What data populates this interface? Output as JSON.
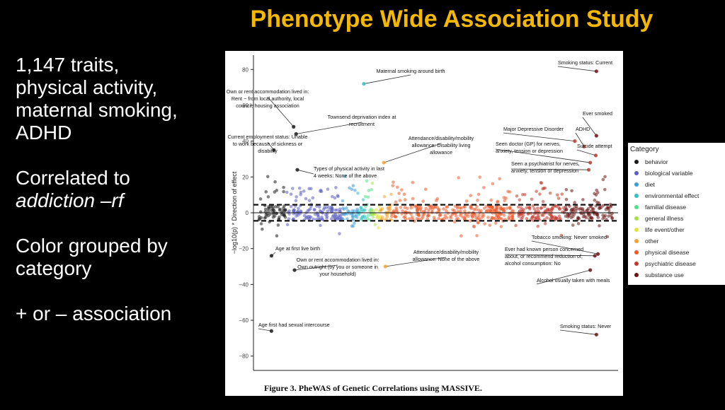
{
  "slide": {
    "title": "Phenotype Wide Association Study",
    "bullets": {
      "b1": [
        "1,147 traits,",
        "physical activity,",
        "maternal smoking,",
        "ADHD"
      ],
      "b2_line1": "Correlated to",
      "b2_line2": "addiction –rf",
      "b3": [
        "Color grouped by",
        "category"
      ],
      "b4": "+ or – association"
    },
    "caption": "Figure 3. PheWAS of Genetic Correlations using MASSIVE."
  },
  "chart_data": {
    "type": "scatter",
    "title": "",
    "xlabel": "",
    "ylabel": "−log10(p) * Direction of effect",
    "ylim": [
      -88,
      88
    ],
    "yticks": [
      -80,
      -60,
      -40,
      -20,
      0,
      20,
      40,
      60,
      80
    ],
    "threshold_lines": [
      4.5,
      -4.5
    ],
    "legend": {
      "title": "Category",
      "placement": "right",
      "categories": [
        {
          "name": "behavior",
          "color": "#1b1b1b"
        },
        {
          "name": "biological variable",
          "color": "#5b5fbf"
        },
        {
          "name": "diet",
          "color": "#3c9bd9"
        },
        {
          "name": "environmental effect",
          "color": "#2fc2c4"
        },
        {
          "name": "familial disease",
          "color": "#4fe08a"
        },
        {
          "name": "general illness",
          "color": "#a8e04a"
        },
        {
          "name": "life event/other",
          "color": "#e5e33c"
        },
        {
          "name": "other",
          "color": "#f4a233"
        },
        {
          "name": "physical disease",
          "color": "#ee5a2a"
        },
        {
          "name": "psychiatric disease",
          "color": "#c0392b"
        },
        {
          "name": "substance use",
          "color": "#6b1515"
        }
      ]
    },
    "category_ranges": [
      {
        "category": "behavior",
        "x_range": [
          0,
          90
        ]
      },
      {
        "category": "biological variable",
        "x_range": [
          90,
          270
        ]
      },
      {
        "category": "diet",
        "x_range": [
          270,
          320
        ]
      },
      {
        "category": "environmental effect",
        "x_range": [
          320,
          345
        ]
      },
      {
        "category": "familial disease",
        "x_range": [
          345,
          365
        ]
      },
      {
        "category": "general illness",
        "x_range": [
          365,
          380
        ]
      },
      {
        "category": "life event/other",
        "x_range": [
          380,
          395
        ]
      },
      {
        "category": "other",
        "x_range": [
          395,
          430
        ]
      },
      {
        "category": "physical disease",
        "x_range": [
          430,
          830
        ]
      },
      {
        "category": "psychiatric disease",
        "x_range": [
          830,
          990
        ]
      },
      {
        "category": "substance use",
        "x_range": [
          990,
          1147
        ]
      }
    ],
    "labeled_points": [
      {
        "x": 340,
        "y": 72,
        "category": "environmental effect",
        "label": "Maternal smoking around birth"
      },
      {
        "x": 112,
        "y": 48,
        "category": "behavior",
        "label": "Own or rent accommodation lived in:|Rent − from local authority, local|council, housing association"
      },
      {
        "x": 120,
        "y": 44,
        "category": "behavior",
        "label": "Townsend deprivation index at|recruitment"
      },
      {
        "x": 48,
        "y": 35,
        "category": "behavior",
        "label": "Current employment status: Unable|to work because of sickness or|disability"
      },
      {
        "x": 124,
        "y": 24,
        "category": "behavior",
        "label": "Types of physical activity in last|4 weeks: None of the above"
      },
      {
        "x": 405,
        "y": 28,
        "category": "other",
        "label": "Attendance/disability/mobility|allowance: Disability living|allowance"
      },
      {
        "x": 1095,
        "y": 79,
        "category": "substance use",
        "label": "Smoking status: Current"
      },
      {
        "x": 1095,
        "y": 43,
        "category": "substance use",
        "label": "Ever smoked"
      },
      {
        "x": 1025,
        "y": 40,
        "category": "psychiatric disease",
        "label": "Major Depressive Disorder"
      },
      {
        "x": 1055,
        "y": 37,
        "category": "psychiatric disease",
        "label": "ADHD"
      },
      {
        "x": 1075,
        "y": 28,
        "category": "psychiatric disease",
        "label": "Seen doctor (GP) for nerves,|anxiety, tension or depression"
      },
      {
        "x": 1093,
        "y": 32,
        "category": "psychiatric disease",
        "label": "Suicide attempt"
      },
      {
        "x": 1070,
        "y": 24,
        "category": "psychiatric disease",
        "label": "Seen a psychiatrist for nerves,|anxiety, tension or depression"
      },
      {
        "x": 40,
        "y": -24,
        "category": "behavior",
        "label": "Age at first live birth"
      },
      {
        "x": 410,
        "y": -30,
        "category": "other",
        "label": "Attendance/disability/mobility|allowance: None of the above"
      },
      {
        "x": 115,
        "y": -32,
        "category": "behavior",
        "label": "Own or rent accommodation lived in:|Own outright (by you or someone in|your household)"
      },
      {
        "x": 1100,
        "y": -23,
        "category": "substance use",
        "label": "Tobacco smoking: Never smoked"
      },
      {
        "x": 1090,
        "y": -24,
        "category": "substance use",
        "label": "Ever had known person concerned|about, or recommend reduction of,|alcohol consumption: No"
      },
      {
        "x": 1075,
        "y": -32,
        "category": "substance use",
        "label": "Alcohol usually taken with meals"
      },
      {
        "x": 40,
        "y": -66,
        "category": "behavior",
        "label": "Age first had sexual intercourse"
      },
      {
        "x": 1095,
        "y": -68,
        "category": "substance use",
        "label": "Smoking status: Never"
      }
    ],
    "n_traits": 1147
  }
}
